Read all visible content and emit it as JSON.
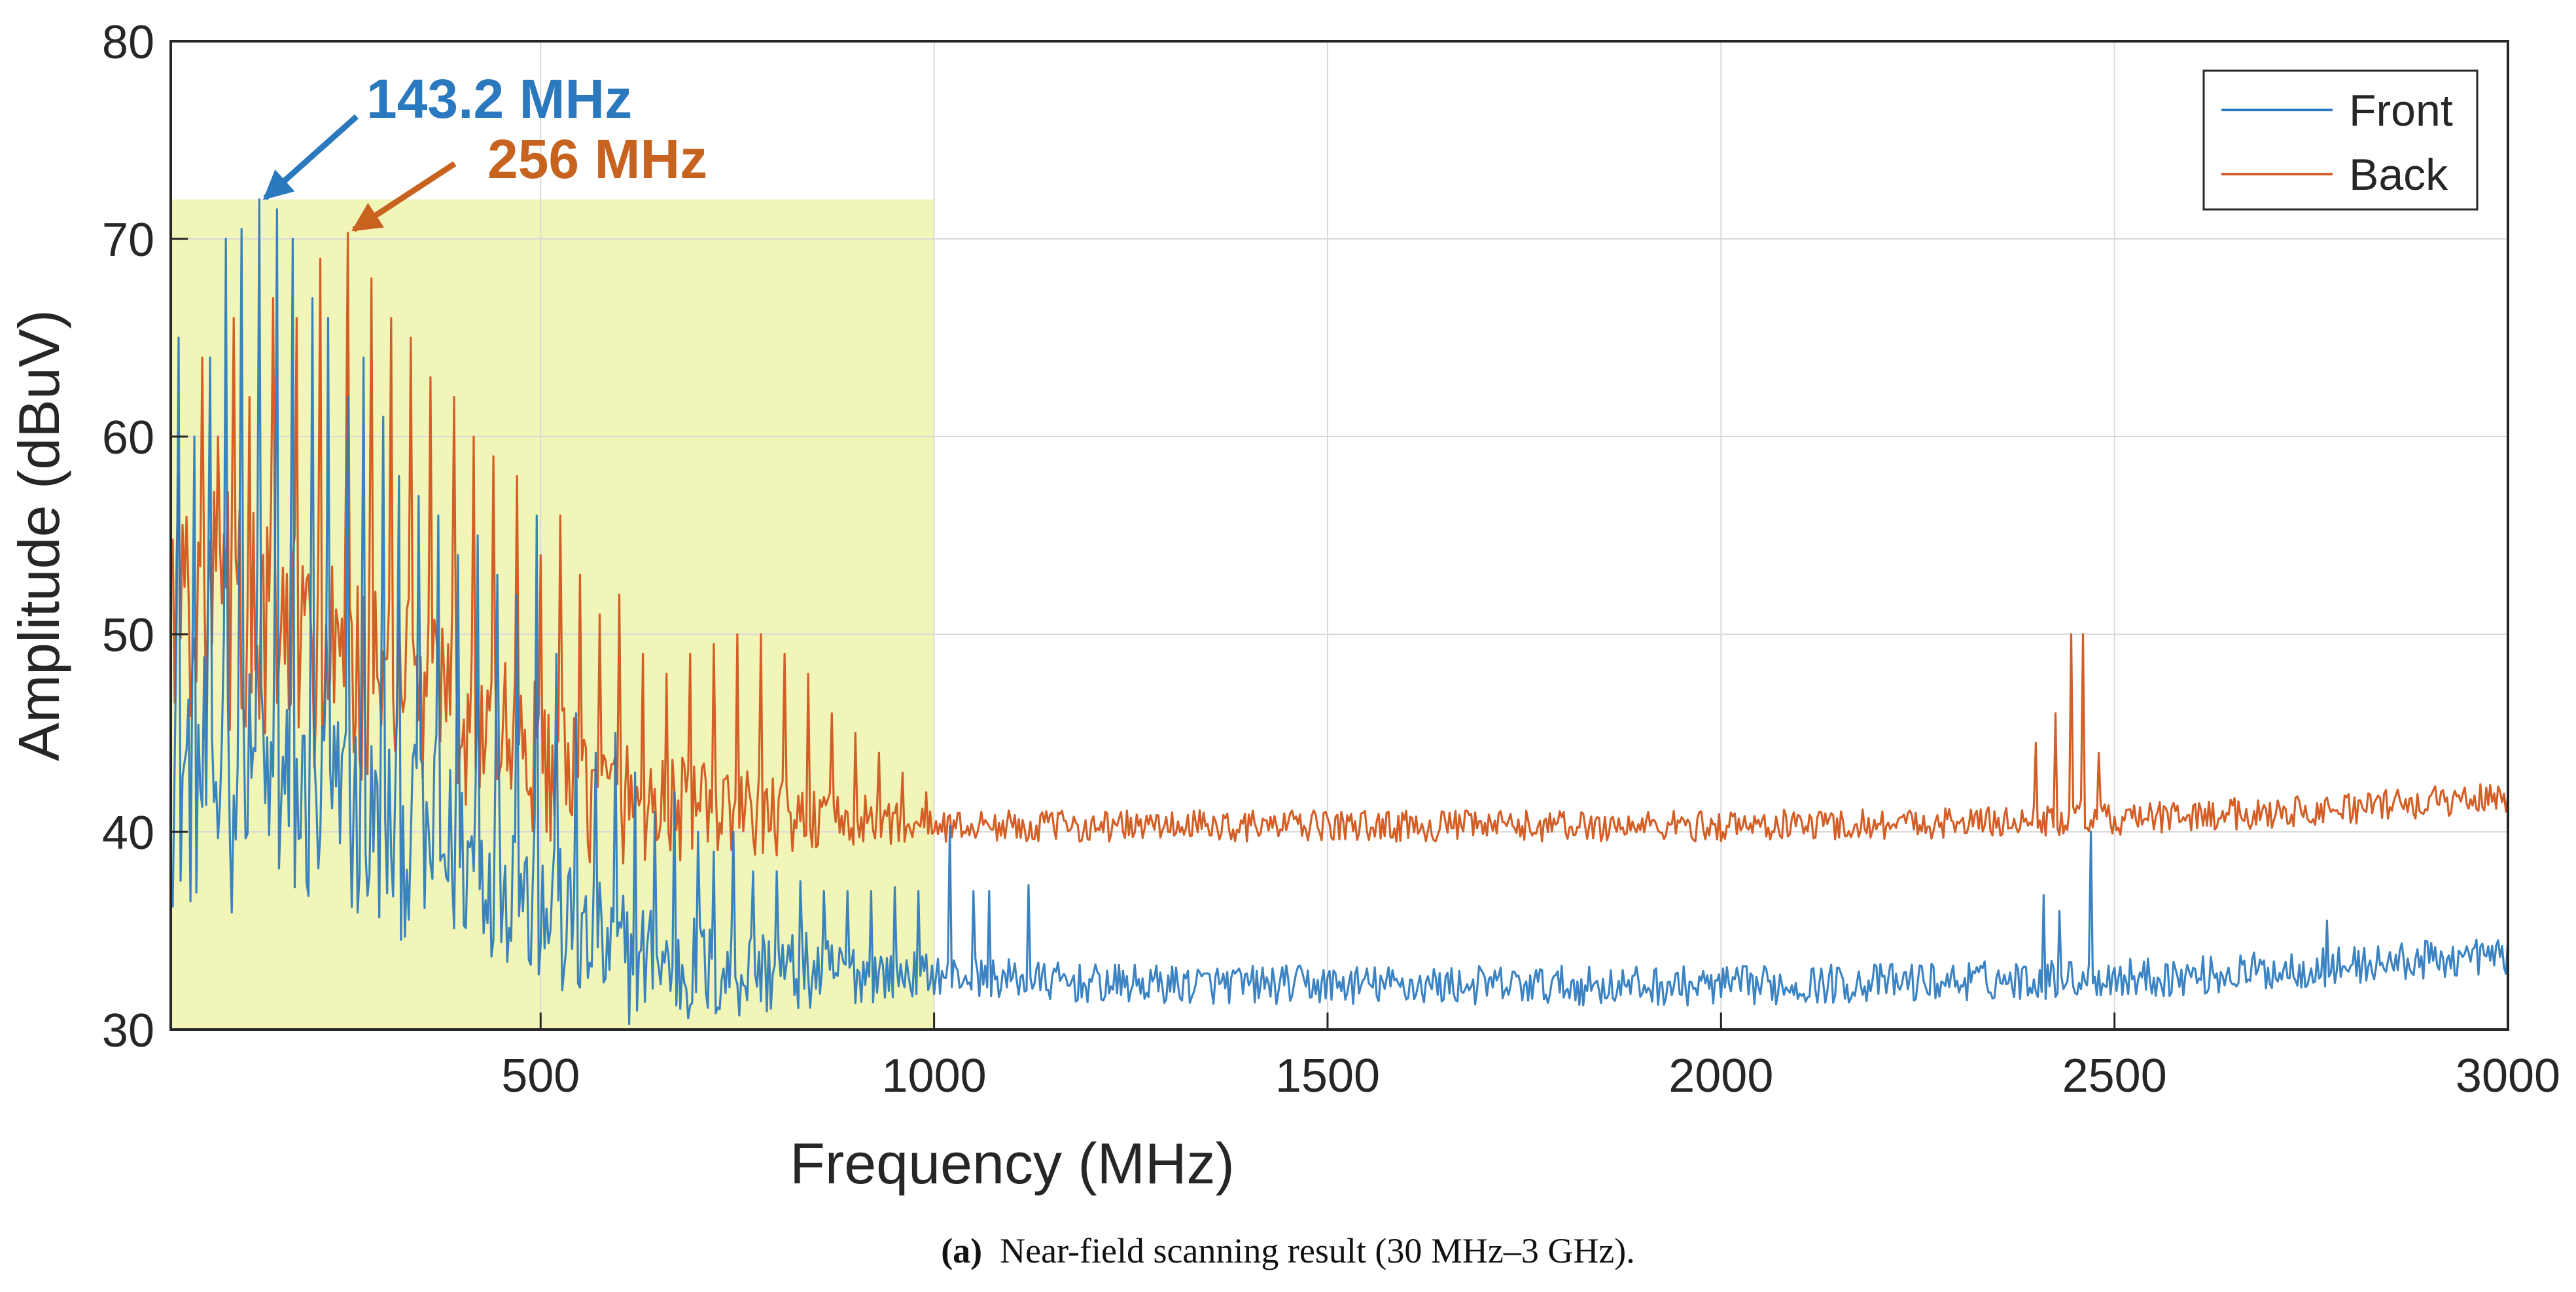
{
  "chart_data": {
    "type": "line",
    "title": "",
    "xlabel": "Frequency (MHz)",
    "ylabel": "Amplitude (dBuV)",
    "xlim": [
      30,
      3000
    ],
    "ylim": [
      30,
      80
    ],
    "xticks": [
      500,
      1000,
      1500,
      2000,
      2500,
      3000
    ],
    "yticks": [
      30,
      40,
      50,
      60,
      70,
      80
    ],
    "grid": true,
    "legend": {
      "position": "top-right",
      "entries": [
        "Front",
        "Back"
      ]
    },
    "highlight_region": {
      "x": [
        30,
        1000
      ],
      "y": [
        30,
        72
      ],
      "color": "#f2f5b8"
    },
    "series": [
      {
        "name": "Front",
        "color": "#2a78bd",
        "baseline_envelope": [
          [
            30,
            43
          ],
          [
            150,
            42
          ],
          [
            300,
            40
          ],
          [
            450,
            38
          ],
          [
            560,
            34
          ],
          [
            700,
            33
          ],
          [
            1000,
            32.8
          ],
          [
            1200,
            32.3
          ],
          [
            2000,
            32.2
          ],
          [
            2600,
            32.7
          ],
          [
            3000,
            33.8
          ]
        ],
        "noise_amplitude": 1.0,
        "peaks": [
          [
            40,
            65
          ],
          [
            60,
            60
          ],
          [
            80,
            64
          ],
          [
            100,
            70
          ],
          [
            120,
            70.5
          ],
          [
            143.2,
            72
          ],
          [
            165,
            71.5
          ],
          [
            185,
            70
          ],
          [
            210,
            67
          ],
          [
            230,
            66
          ],
          [
            255,
            62
          ],
          [
            275,
            64
          ],
          [
            300,
            61
          ],
          [
            320,
            58
          ],
          [
            345,
            57
          ],
          [
            370,
            56
          ],
          [
            395,
            54
          ],
          [
            420,
            55
          ],
          [
            445,
            53
          ],
          [
            470,
            52
          ],
          [
            495,
            56
          ],
          [
            520,
            49
          ],
          [
            545,
            46
          ],
          [
            570,
            44
          ],
          [
            595,
            45
          ],
          [
            620,
            43
          ],
          [
            645,
            41
          ],
          [
            670,
            42
          ],
          [
            700,
            40
          ],
          [
            720,
            39
          ],
          [
            745,
            40
          ],
          [
            770,
            38
          ],
          [
            800,
            38
          ],
          [
            830,
            37.5
          ],
          [
            860,
            37
          ],
          [
            890,
            37
          ],
          [
            920,
            37
          ],
          [
            950,
            37.2
          ],
          [
            980,
            37
          ],
          [
            1020,
            40.3
          ],
          [
            1050,
            37
          ],
          [
            1070,
            37
          ],
          [
            1120,
            37.3
          ],
          [
            2410,
            36.8
          ],
          [
            2430,
            36
          ],
          [
            2470,
            40
          ],
          [
            2770,
            35.5
          ]
        ]
      },
      {
        "name": "Back",
        "color": "#d35f27",
        "baseline_envelope": [
          [
            30,
            53
          ],
          [
            150,
            50
          ],
          [
            300,
            47
          ],
          [
            450,
            45
          ],
          [
            550,
            42
          ],
          [
            700,
            41
          ],
          [
            1000,
            40.3
          ],
          [
            1500,
            40.3
          ],
          [
            2000,
            40.3
          ],
          [
            2500,
            40.6
          ],
          [
            2800,
            41.2
          ],
          [
            3000,
            41.8
          ]
        ],
        "noise_amplitude": 0.8,
        "peaks": [
          [
            40,
            58
          ],
          [
            70,
            64
          ],
          [
            90,
            60
          ],
          [
            110,
            66
          ],
          [
            130,
            62
          ],
          [
            160,
            67
          ],
          [
            190,
            66
          ],
          [
            220,
            69
          ],
          [
            256,
            70.3
          ],
          [
            285,
            68
          ],
          [
            310,
            66
          ],
          [
            335,
            65
          ],
          [
            360,
            63
          ],
          [
            390,
            62
          ],
          [
            415,
            60
          ],
          [
            440,
            59
          ],
          [
            470,
            58
          ],
          [
            500,
            54
          ],
          [
            525,
            56
          ],
          [
            550,
            53
          ],
          [
            575,
            51
          ],
          [
            600,
            52
          ],
          [
            630,
            49
          ],
          [
            660,
            48
          ],
          [
            690,
            49
          ],
          [
            720,
            49.5
          ],
          [
            750,
            50
          ],
          [
            780,
            50
          ],
          [
            810,
            49
          ],
          [
            840,
            48
          ],
          [
            870,
            46
          ],
          [
            900,
            45
          ],
          [
            930,
            44
          ],
          [
            960,
            43
          ],
          [
            990,
            42
          ],
          [
            2400,
            44.5
          ],
          [
            2425,
            46
          ],
          [
            2445,
            50
          ],
          [
            2460,
            50
          ],
          [
            2480,
            44
          ]
        ]
      }
    ],
    "annotations": [
      {
        "text": "143.2 MHz",
        "x": 143.2,
        "y": 72.1,
        "color": "#2a78bd"
      },
      {
        "text": "256 MHz",
        "x": 256,
        "y": 70.5,
        "color": "#c8631f"
      }
    ]
  },
  "caption": {
    "label": "(a)",
    "text": "Near-field scanning result (30 MHz–3 GHz)."
  }
}
